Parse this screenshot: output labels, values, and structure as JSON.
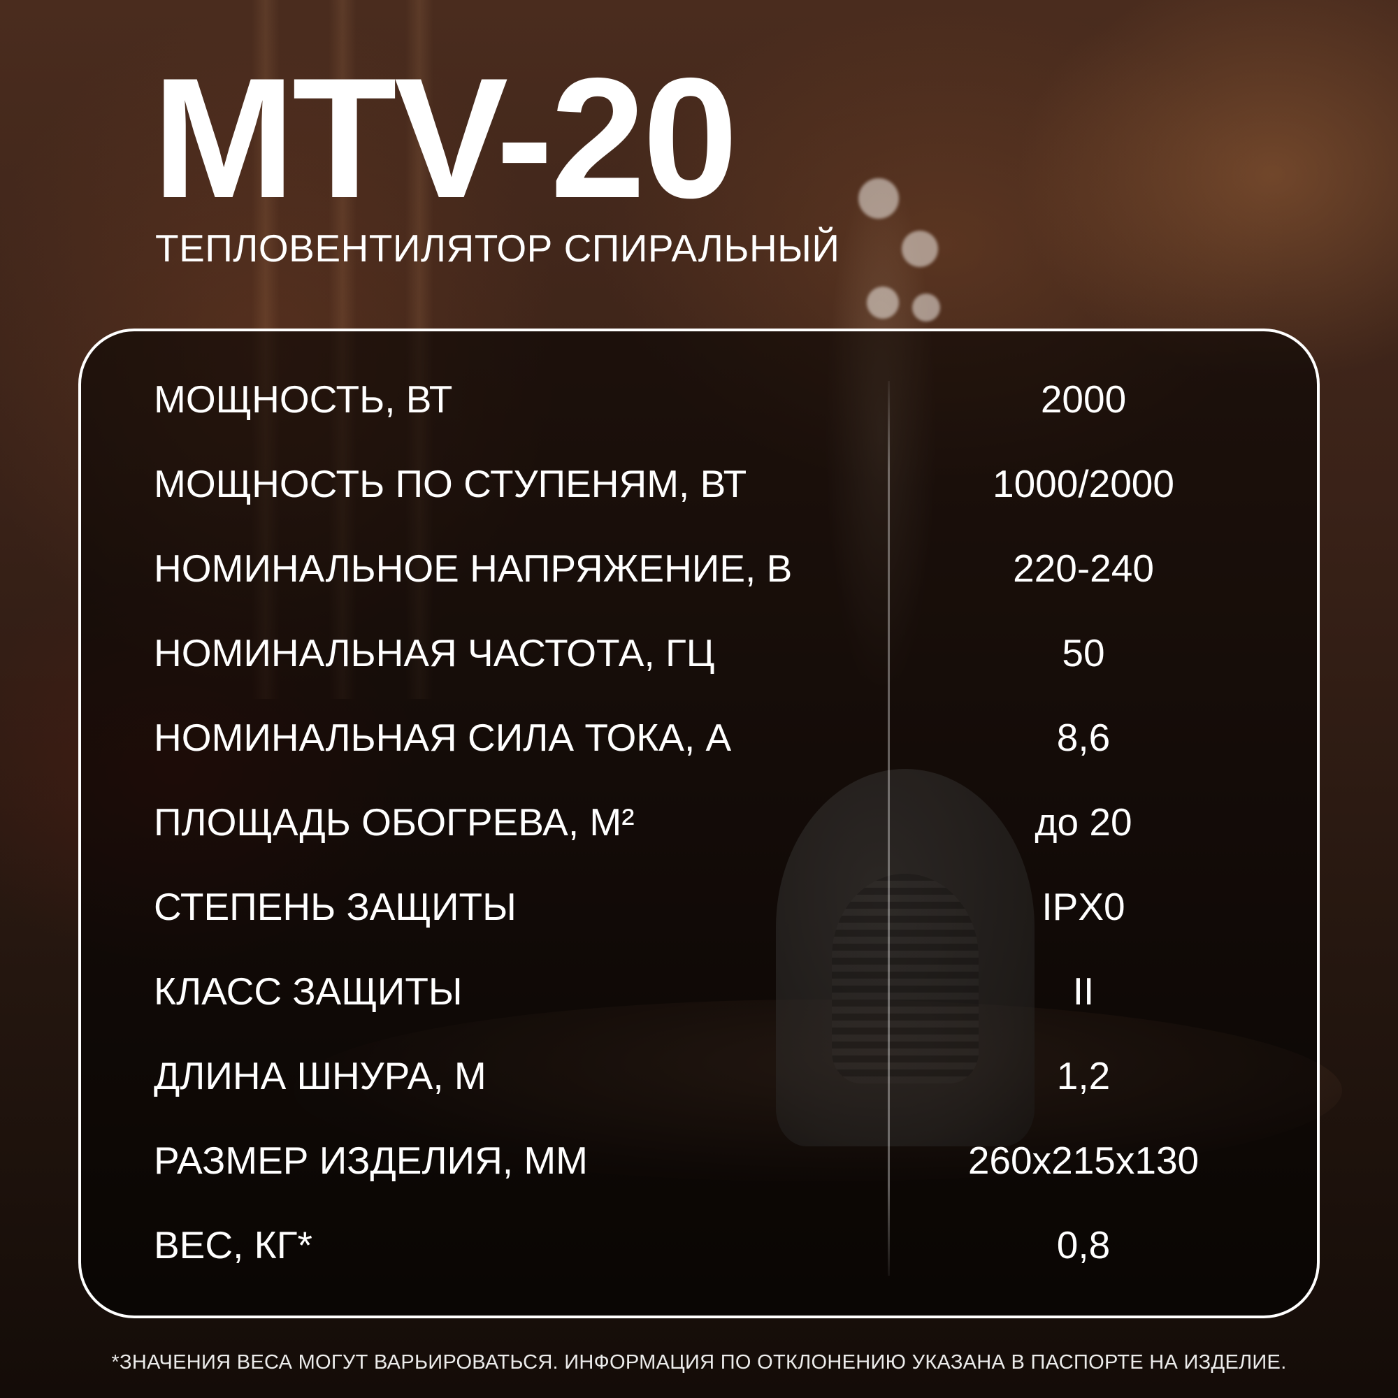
{
  "product": {
    "model": "MTV-20",
    "subtitle": "ТЕПЛОВЕНТИЛЯТОР СПИРАЛЬНЫЙ"
  },
  "specs": [
    {
      "label": "МОЩНОСТЬ, ВТ",
      "value": "2000"
    },
    {
      "label": "МОЩНОСТЬ ПО СТУПЕНЯМ, ВТ",
      "value": "1000/2000"
    },
    {
      "label": "НОМИНАЛЬНОЕ НАПРЯЖЕНИЕ, В",
      "value": "220-240"
    },
    {
      "label": "НОМИНАЛЬНАЯ ЧАСТОТА, ГЦ",
      "value": "50"
    },
    {
      "label": "НОМИНАЛЬНАЯ СИЛА ТОКА, А",
      "value": "8,6"
    },
    {
      "label": "ПЛОЩАДЬ ОБОГРЕВА, М²",
      "value": "до 20"
    },
    {
      "label": "СТЕПЕНЬ ЗАЩИТЫ",
      "value": "IPX0"
    },
    {
      "label": "КЛАСС ЗАЩИТЫ",
      "value": "II"
    },
    {
      "label": "ДЛИНА ШНУРА, М",
      "value": "1,2"
    },
    {
      "label": "РАЗМЕР ИЗДЕЛИЯ, ММ",
      "value": "260x215x130"
    },
    {
      "label": "ВЕС, КГ*",
      "value": "0,8"
    }
  ],
  "footnote": "*ЗНАЧЕНИЯ ВЕСА МОГУТ ВАРЬИРОВАТЬСЯ. ИНФОРМАЦИЯ ПО ОТКЛОНЕНИЮ УКАЗАНА В ПАСПОРТЕ НА ИЗДЕЛИЕ.",
  "colors": {
    "text": "#ffffff",
    "panel_border": "#ffffff",
    "background_warm": "#4a2c1e"
  }
}
